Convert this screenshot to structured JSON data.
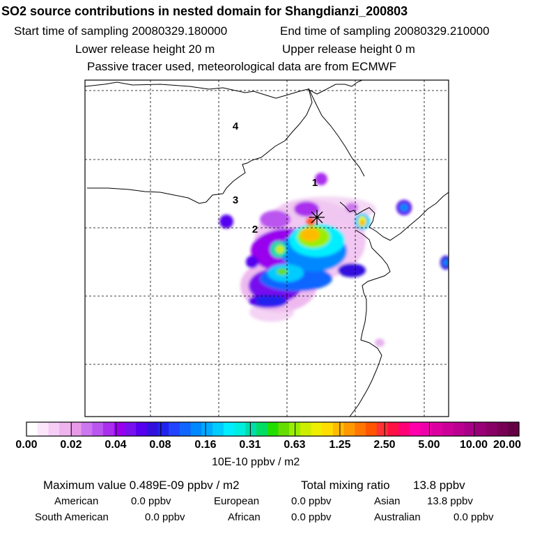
{
  "header": {
    "title": "SO2 source contributions in nested domain for Shangdianzi_200803",
    "start": "Start time of sampling 20080329.180000",
    "end": "End time of sampling 20080329.210000",
    "lower": "Lower release height   20 m",
    "upper": "Upper release height    0 m",
    "note": "Passive tracer used, meteorological data are from ECMWF"
  },
  "map": {
    "region_labels": [
      "4",
      "1",
      "3",
      "2"
    ],
    "station_marker": "star-marker"
  },
  "colorbar": {
    "ticks": [
      "0.00",
      "0.02",
      "0.04",
      "0.08",
      "0.16",
      "0.31",
      "0.63",
      "1.25",
      "2.50",
      "5.00",
      "10.00",
      "20.00"
    ],
    "colors": [
      "#ffffff",
      "#fbe6fb",
      "#f5cdf5",
      "#eeb4ee",
      "#e79be7",
      "#cc77ee",
      "#bb55f0",
      "#aa2eee",
      "#9900ee",
      "#7711ee",
      "#5500ee",
      "#3311dd",
      "#2222ee",
      "#2244ff",
      "#1166ff",
      "#0088ff",
      "#00aaff",
      "#00ccff",
      "#00eeff",
      "#00eedd",
      "#00ddaa",
      "#00dd66",
      "#22dd00",
      "#66dd00",
      "#99ee00",
      "#ccee00",
      "#eeee00",
      "#ffdd00",
      "#ffbb00",
      "#ff9900",
      "#ff7700",
      "#ff5500",
      "#ff3333",
      "#ff1144",
      "#ff0077",
      "#ff00aa",
      "#ee00aa",
      "#dd00a0",
      "#cc0099",
      "#bb0090",
      "#aa0088",
      "#990077",
      "#880066",
      "#770055",
      "#660044"
    ],
    "units": "10E-10 ppbv / m2"
  },
  "summary": {
    "max": "Maximum value  0.489E-09 ppbv / m2",
    "total_label": "Total mixing ratio",
    "total_value": "13.8 ppbv",
    "regions": [
      {
        "name": "American",
        "value": "0.0 ppbv"
      },
      {
        "name": "European",
        "value": "0.0 ppbv"
      },
      {
        "name": "Asian",
        "value": "13.8 ppbv"
      },
      {
        "name": "South American",
        "value": "0.0 ppbv"
      },
      {
        "name": "African",
        "value": "0.0 ppbv"
      },
      {
        "name": "Australian",
        "value": "0.0 ppbv"
      }
    ]
  }
}
